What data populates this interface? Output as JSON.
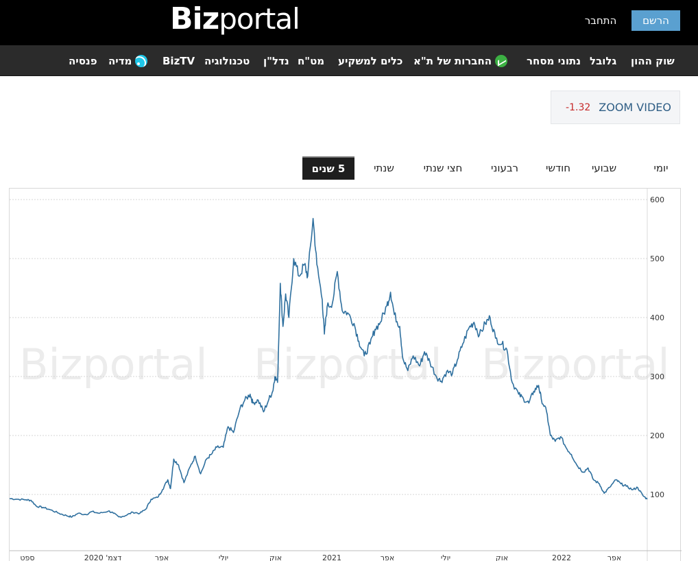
{
  "header": {
    "logo_bold": "Biz",
    "logo_light": "portal",
    "register_label": "הרשם",
    "login_label": "התחבר"
  },
  "nav": {
    "items": [
      {
        "label": "שוק ההון",
        "icon": ""
      },
      {
        "label": "גלובל",
        "icon": ""
      },
      {
        "label": "נתוני מסחר",
        "icon": ""
      },
      {
        "label": "החברות של ת\"א",
        "icon": "trend-up-icon"
      },
      {
        "label": "כלים למשקיע",
        "icon": ""
      },
      {
        "label": "מט\"ח",
        "icon": ""
      },
      {
        "label": "נדל\"ן",
        "icon": ""
      },
      {
        "label": "טכנולוגיה",
        "icon": ""
      },
      {
        "label": "BizTV",
        "icon": ""
      },
      {
        "label": "מדיה",
        "icon": "rss-icon"
      },
      {
        "label": "פנסיה",
        "icon": ""
      }
    ],
    "icon_colors": {
      "trend-up-icon": "#3cb043",
      "rss-icon": "#1ec6e8"
    }
  },
  "stock": {
    "name": "ZOOM VIDEO",
    "change": "-1.32",
    "change_color": "#c62828"
  },
  "period_tabs": {
    "items": [
      "יומי",
      "שבועי",
      "חודשי",
      "רבעוני",
      "חצי שנתי",
      "שנתי",
      "5 שנים"
    ],
    "active": "5 שנים"
  },
  "chart_data": {
    "type": "line",
    "title": "",
    "xlabel": "",
    "ylabel": "",
    "ylim": [
      0,
      600
    ],
    "y_ticks": [
      100,
      200,
      300,
      400,
      500,
      600
    ],
    "x_tick_labels": [
      "ספט",
      "דצמ' 2020",
      "אפר",
      "יולי",
      "אוק",
      "2021",
      "אפר",
      "יולי",
      "אוק",
      "2022",
      "אפר"
    ],
    "watermark": "Bizportal",
    "line_color": "#2e6f9e",
    "grid": true,
    "series": [
      {
        "name": "",
        "points": [
          [
            "2019-07-01",
            93
          ],
          [
            "2019-07-15",
            92
          ],
          [
            "2019-08-01",
            91
          ],
          [
            "2019-08-10",
            90
          ],
          [
            "2019-08-20",
            80
          ],
          [
            "2019-09-01",
            78
          ],
          [
            "2019-09-15",
            74
          ],
          [
            "2019-10-01",
            68
          ],
          [
            "2019-10-15",
            64
          ],
          [
            "2019-10-25",
            62
          ],
          [
            "2019-11-05",
            68
          ],
          [
            "2019-11-20",
            66
          ],
          [
            "2019-12-01",
            71
          ],
          [
            "2019-12-15",
            68
          ],
          [
            "2020-01-01",
            72
          ],
          [
            "2020-01-10",
            68
          ],
          [
            "2020-01-20",
            62
          ],
          [
            "2020-02-01",
            64
          ],
          [
            "2020-02-15",
            70
          ],
          [
            "2020-02-28",
            68
          ],
          [
            "2020-03-10",
            75
          ],
          [
            "2020-03-20",
            92
          ],
          [
            "2020-04-01",
            95
          ],
          [
            "2020-04-10",
            108
          ],
          [
            "2020-04-20",
            125
          ],
          [
            "2020-04-25",
            110
          ],
          [
            "2020-05-01",
            160
          ],
          [
            "2020-05-10",
            150
          ],
          [
            "2020-05-20",
            120
          ],
          [
            "2020-06-01",
            148
          ],
          [
            "2020-06-10",
            165
          ],
          [
            "2020-06-20",
            135
          ],
          [
            "2020-07-01",
            160
          ],
          [
            "2020-07-10",
            168
          ],
          [
            "2020-07-20",
            180
          ],
          [
            "2020-08-01",
            180
          ],
          [
            "2020-08-10",
            215
          ],
          [
            "2020-08-20",
            205
          ],
          [
            "2020-09-01",
            245
          ],
          [
            "2020-09-10",
            260
          ],
          [
            "2020-09-20",
            270
          ],
          [
            "2020-09-25",
            255
          ],
          [
            "2020-10-05",
            260
          ],
          [
            "2020-10-15",
            240
          ],
          [
            "2020-10-25",
            262
          ],
          [
            "2020-11-01",
            275
          ],
          [
            "2020-11-05",
            300
          ],
          [
            "2020-11-10",
            290
          ],
          [
            "2020-11-15",
            458
          ],
          [
            "2020-11-20",
            385
          ],
          [
            "2020-11-25",
            440
          ],
          [
            "2020-12-01",
            400
          ],
          [
            "2020-12-10",
            500
          ],
          [
            "2020-12-20",
            470
          ],
          [
            "2020-12-30",
            490
          ],
          [
            "2021-01-05",
            470
          ],
          [
            "2021-01-15",
            568
          ],
          [
            "2021-01-22",
            490
          ],
          [
            "2021-02-01",
            430
          ],
          [
            "2021-02-05",
            372
          ],
          [
            "2021-02-10",
            418
          ],
          [
            "2021-02-20",
            425
          ],
          [
            "2021-03-01",
            478
          ],
          [
            "2021-03-10",
            412
          ],
          [
            "2021-03-20",
            408
          ],
          [
            "2021-04-01",
            390
          ],
          [
            "2021-04-10",
            360
          ],
          [
            "2021-04-20",
            335
          ],
          [
            "2021-05-01",
            355
          ],
          [
            "2021-05-10",
            380
          ],
          [
            "2021-05-20",
            392
          ],
          [
            "2021-06-01",
            420
          ],
          [
            "2021-06-08",
            443
          ],
          [
            "2021-06-15",
            405
          ],
          [
            "2021-06-25",
            385
          ],
          [
            "2021-07-01",
            330
          ],
          [
            "2021-07-10",
            310
          ],
          [
            "2021-07-20",
            335
          ],
          [
            "2021-08-01",
            318
          ],
          [
            "2021-08-10",
            342
          ],
          [
            "2021-08-20",
            325
          ],
          [
            "2021-09-01",
            300
          ],
          [
            "2021-09-10",
            292
          ],
          [
            "2021-09-20",
            308
          ],
          [
            "2021-10-01",
            305
          ],
          [
            "2021-10-10",
            328
          ],
          [
            "2021-10-20",
            355
          ],
          [
            "2021-11-01",
            383
          ],
          [
            "2021-11-10",
            392
          ],
          [
            "2021-11-20",
            370
          ],
          [
            "2021-12-01",
            390
          ],
          [
            "2021-12-10",
            400
          ],
          [
            "2021-12-20",
            365
          ],
          [
            "2022-01-01",
            355
          ],
          [
            "2022-01-10",
            346
          ],
          [
            "2022-01-20",
            290
          ],
          [
            "2022-02-01",
            270
          ],
          [
            "2022-02-10",
            262
          ],
          [
            "2022-02-20",
            255
          ],
          [
            "2022-03-01",
            275
          ],
          [
            "2022-03-10",
            285
          ],
          [
            "2022-03-15",
            262
          ],
          [
            "2022-03-25",
            240
          ],
          [
            "2022-04-01",
            200
          ],
          [
            "2022-04-10",
            190
          ],
          [
            "2022-04-20",
            198
          ],
          [
            "2022-05-01",
            178
          ],
          [
            "2022-05-10",
            168
          ],
          [
            "2022-05-20",
            150
          ],
          [
            "2022-06-01",
            138
          ],
          [
            "2022-06-10",
            145
          ],
          [
            "2022-06-20",
            125
          ],
          [
            "2022-07-01",
            118
          ],
          [
            "2022-07-10",
            102
          ],
          [
            "2022-07-20",
            112
          ],
          [
            "2022-08-01",
            125
          ],
          [
            "2022-08-10",
            118
          ],
          [
            "2022-08-20",
            114
          ],
          [
            "2022-09-01",
            108
          ],
          [
            "2022-09-10",
            112
          ],
          [
            "2022-09-20",
            98
          ],
          [
            "2022-09-28",
            92
          ]
        ]
      }
    ]
  }
}
